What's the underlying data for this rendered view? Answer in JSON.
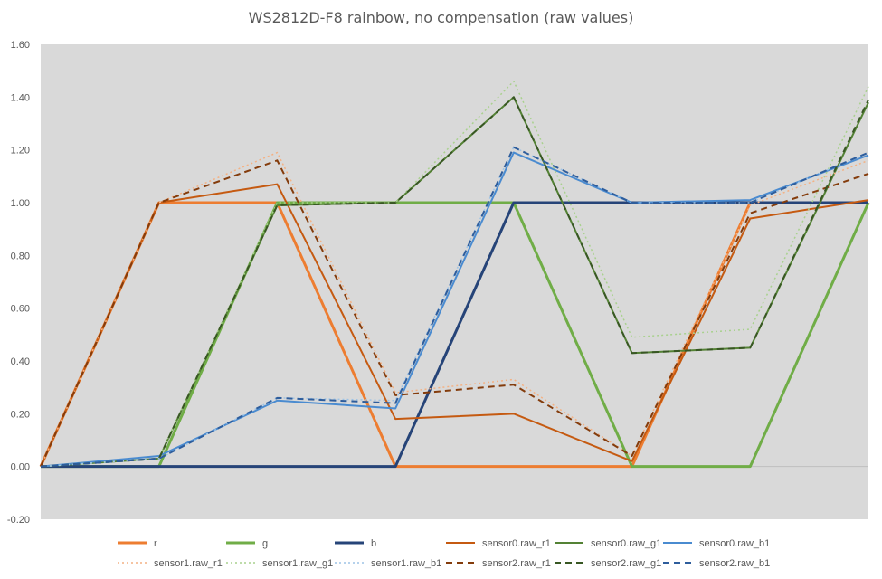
{
  "chart_data": {
    "type": "line",
    "title": "WS2812D-F8 rainbow, no compensation (raw values)",
    "xlabel": "",
    "ylabel": "",
    "ylim": [
      -0.2,
      1.6
    ],
    "yticks": [
      "-0.20",
      "0.00",
      "0.20",
      "0.40",
      "0.60",
      "0.80",
      "1.00",
      "1.20",
      "1.40",
      "1.60"
    ],
    "grid": false,
    "legend_position": "bottom",
    "plot_background": "#d9d9d9",
    "x": [
      0,
      1,
      2,
      3,
      4,
      5,
      6,
      7
    ],
    "series": [
      {
        "name": "r",
        "color": "#ed7d31",
        "dash": "solid",
        "width": 3,
        "points": [
          [
            0,
            0
          ],
          [
            1,
            1
          ],
          [
            2,
            1
          ],
          [
            3,
            0
          ],
          [
            4,
            0
          ],
          [
            5,
            0
          ],
          [
            6,
            1
          ],
          [
            7,
            1
          ]
        ]
      },
      {
        "name": "g",
        "color": "#70ad47",
        "dash": "solid",
        "width": 3,
        "points": [
          [
            0,
            0
          ],
          [
            1,
            0
          ],
          [
            2,
            1
          ],
          [
            3,
            1
          ],
          [
            4,
            1
          ],
          [
            5,
            0
          ],
          [
            6,
            0
          ],
          [
            7,
            1
          ]
        ]
      },
      {
        "name": "b",
        "color": "#264478",
        "dash": "solid",
        "width": 3,
        "points": [
          [
            0,
            0
          ],
          [
            1,
            0
          ],
          [
            2,
            0
          ],
          [
            3,
            0
          ],
          [
            4,
            1
          ],
          [
            5,
            1
          ],
          [
            6,
            1
          ],
          [
            7,
            1
          ]
        ]
      },
      {
        "name": "sensor0.raw_r1",
        "color": "#c55a11",
        "dash": "solid",
        "width": 2,
        "points": [
          [
            0,
            0
          ],
          [
            1,
            1
          ],
          [
            2,
            1.07
          ],
          [
            3,
            0.18
          ],
          [
            4,
            0.2
          ],
          [
            5,
            0.02
          ],
          [
            6,
            0.94
          ],
          [
            7,
            1.01
          ]
        ]
      },
      {
        "name": "sensor0.raw_g1",
        "color": "#548235",
        "dash": "solid",
        "width": 2,
        "points": [
          [
            0,
            0
          ],
          [
            1,
            0.03
          ],
          [
            2,
            0.99
          ],
          [
            3,
            1.0
          ],
          [
            4,
            1.4
          ],
          [
            5,
            0.43
          ],
          [
            6,
            0.45
          ],
          [
            7,
            1.38
          ]
        ]
      },
      {
        "name": "sensor0.raw_b1",
        "color": "#4a8bd0",
        "dash": "solid",
        "width": 2,
        "points": [
          [
            0,
            0
          ],
          [
            1,
            0.04
          ],
          [
            2,
            0.25
          ],
          [
            3,
            0.22
          ],
          [
            4,
            1.19
          ],
          [
            5,
            1.0
          ],
          [
            6,
            1.01
          ],
          [
            7,
            1.18
          ]
        ]
      },
      {
        "name": "sensor1.raw_r1",
        "color": "#f4b183",
        "dash": "dotted",
        "width": 1.5,
        "points": [
          [
            0,
            0
          ],
          [
            1,
            1
          ],
          [
            2,
            1.19
          ],
          [
            3,
            0.28
          ],
          [
            4,
            0.33
          ],
          [
            5,
            0.04
          ],
          [
            6,
            0.99
          ],
          [
            7,
            1.16
          ]
        ]
      },
      {
        "name": "sensor1.raw_g1",
        "color": "#a9d18e",
        "dash": "dotted",
        "width": 1.5,
        "points": [
          [
            0,
            0
          ],
          [
            1,
            0.03
          ],
          [
            2,
            1.0
          ],
          [
            3,
            1.0
          ],
          [
            4,
            1.46
          ],
          [
            5,
            0.49
          ],
          [
            6,
            0.52
          ],
          [
            7,
            1.44
          ]
        ]
      },
      {
        "name": "sensor1.raw_b1",
        "color": "#9dc3e6",
        "dash": "dotted",
        "width": 1.5,
        "points": [
          [
            0,
            0
          ],
          [
            1,
            0.03
          ],
          [
            2,
            0.26
          ],
          [
            3,
            0.25
          ],
          [
            4,
            1.21
          ],
          [
            5,
            1.0
          ],
          [
            6,
            1.0
          ],
          [
            7,
            1.19
          ]
        ]
      },
      {
        "name": "sensor2.raw_r1",
        "color": "#843c0c",
        "dash": "dashed",
        "width": 2,
        "points": [
          [
            0,
            0
          ],
          [
            1,
            1
          ],
          [
            2,
            1.16
          ],
          [
            3,
            0.27
          ],
          [
            4,
            0.31
          ],
          [
            5,
            0.04
          ],
          [
            6,
            0.96
          ],
          [
            7,
            1.11
          ]
        ]
      },
      {
        "name": "sensor2.raw_g1",
        "color": "#385723",
        "dash": "dashed",
        "width": 2,
        "points": [
          [
            0,
            0
          ],
          [
            1,
            0.03
          ],
          [
            2,
            0.99
          ],
          [
            3,
            1.0
          ],
          [
            4,
            1.4
          ],
          [
            5,
            0.43
          ],
          [
            6,
            0.45
          ],
          [
            7,
            1.39
          ]
        ]
      },
      {
        "name": "sensor2.raw_b1",
        "color": "#2e5d9c",
        "dash": "dashed",
        "width": 2,
        "points": [
          [
            0,
            0
          ],
          [
            1,
            0.03
          ],
          [
            2,
            0.26
          ],
          [
            3,
            0.24
          ],
          [
            4,
            1.21
          ],
          [
            5,
            1.0
          ],
          [
            6,
            1.0
          ],
          [
            7,
            1.19
          ]
        ]
      }
    ]
  }
}
